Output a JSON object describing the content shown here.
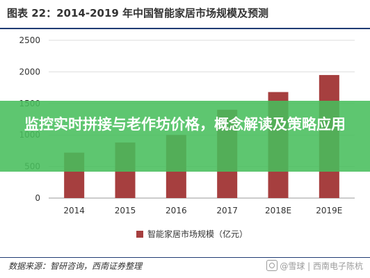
{
  "chart_data": {
    "type": "bar",
    "title": "图表 22：2014-2019 年中国智能家居市场规模及预测",
    "categories": [
      "2014",
      "2015",
      "2016",
      "2017",
      "2018E",
      "2019E"
    ],
    "series": [
      {
        "name": "智能家居市场规模（亿元）",
        "values": [
          720,
          880,
          1000,
          1400,
          1680,
          1950
        ],
        "color": "#a63f3f"
      }
    ],
    "yticks": [
      "0",
      "500",
      "1000",
      "1500",
      "2000",
      "2500"
    ],
    "ylim": [
      0,
      2500
    ],
    "grid": true,
    "legend": "bottom-center"
  },
  "overlay": {
    "text": "监控实时拼接与老作坊价格，概念解读及策略应用"
  },
  "footer": {
    "source": "数据来源：智研咨询，西南证券整理",
    "watermark": "@雪球 | 西南电子陈杭"
  }
}
